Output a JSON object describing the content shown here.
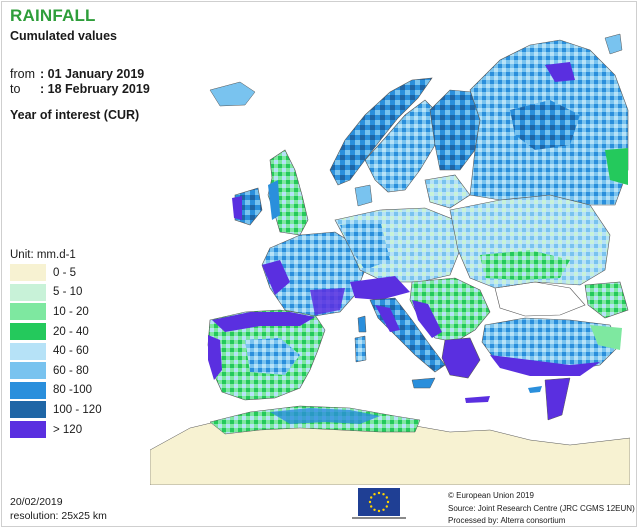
{
  "header": {
    "title": "RAINFALL",
    "subtitle": "Cumulated values",
    "from_label": "from",
    "from_value": ": 01 January 2019",
    "to_label": "to",
    "to_value": ": 18 February 2019",
    "year_of_interest": "Year of interest (CUR)"
  },
  "legend": {
    "unit": "Unit:  mm.d-1",
    "items": [
      {
        "label": "0 - 5",
        "color": "#f7f2d2"
      },
      {
        "label": "5 - 10",
        "color": "#c8f2d8"
      },
      {
        "label": "10 - 20",
        "color": "#7ee8a0"
      },
      {
        "label": "20 - 40",
        "color": "#24c95c"
      },
      {
        "label": "40 - 60",
        "color": "#b6e2f7"
      },
      {
        "label": "60 - 80",
        "color": "#79c3ef"
      },
      {
        "label": "80 -100",
        "color": "#2a8fdc"
      },
      {
        "label": "100 - 120",
        "color": "#1f66a6"
      },
      {
        "label": "> 120",
        "color": "#5a2fe0"
      }
    ]
  },
  "footer": {
    "date": "20/02/2019",
    "resolution": "resolution:  25x25 km",
    "copyright": "© European Union 2019",
    "source": "Source: Joint Research Centre (JRC CGMS 12EUN)",
    "processed": "Processed by: Alterra consortium"
  },
  "colors": {
    "title": "#2e9e3a",
    "sea": "#ffffff",
    "border": "#555555"
  }
}
